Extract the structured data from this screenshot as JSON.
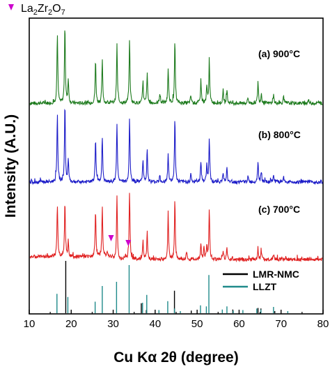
{
  "chart_data": {
    "type": "line",
    "xlabel": "Cu Kα 2θ (degree)",
    "ylabel": "Intensity (A.U.)",
    "xlim": [
      10,
      80
    ],
    "xticks": [
      "10",
      "20",
      "30",
      "40",
      "50",
      "60",
      "70",
      "80"
    ],
    "marker_legend": {
      "base": "La",
      "parts": [
        {
          "t": "La",
          "s": false
        },
        {
          "t": "2",
          "s": true
        },
        {
          "t": "Zr",
          "s": false
        },
        {
          "t": "2",
          "s": true
        },
        {
          "t": "O",
          "s": false
        },
        {
          "t": "7",
          "s": true
        }
      ],
      "color": "#cc00cc"
    },
    "panel_labels": [
      {
        "text": "(a) 900°C",
        "offset": 0
      },
      {
        "text": "(b) 800°C",
        "offset": 1
      },
      {
        "text": "(c) 700°C",
        "offset": 2
      }
    ],
    "series": [
      {
        "name": "(a) 900°C",
        "color": "#1e7b1e",
        "peaks": [
          [
            16.7,
            180
          ],
          [
            18.5,
            200
          ],
          [
            19.3,
            60
          ],
          [
            25.8,
            110
          ],
          [
            27.4,
            110
          ],
          [
            30.9,
            150
          ],
          [
            33.9,
            165
          ],
          [
            37.1,
            55
          ],
          [
            38.1,
            75
          ],
          [
            41.1,
            25
          ],
          [
            43.1,
            85
          ],
          [
            44.7,
            160
          ],
          [
            48.5,
            20
          ],
          [
            50.9,
            60
          ],
          [
            52.3,
            45
          ],
          [
            52.9,
            110
          ],
          [
            56.2,
            30
          ],
          [
            57.1,
            35
          ],
          [
            62.1,
            15
          ],
          [
            64.5,
            55
          ],
          [
            65.3,
            25
          ],
          [
            68.2,
            22
          ],
          [
            70.6,
            15
          ],
          [
            76.5,
            10
          ]
        ]
      },
      {
        "name": "(b) 800°C",
        "color": "#1c1cc8",
        "peaks": [
          [
            16.7,
            175
          ],
          [
            18.5,
            200
          ],
          [
            19.3,
            55
          ],
          [
            25.8,
            110
          ],
          [
            27.4,
            115
          ],
          [
            30.9,
            150
          ],
          [
            33.9,
            165
          ],
          [
            37.1,
            55
          ],
          [
            38.1,
            80
          ],
          [
            41.1,
            20
          ],
          [
            43.1,
            70
          ],
          [
            44.7,
            165
          ],
          [
            48.5,
            20
          ],
          [
            50.9,
            55
          ],
          [
            52.3,
            45
          ],
          [
            52.9,
            115
          ],
          [
            56.2,
            25
          ],
          [
            57.1,
            35
          ],
          [
            62.1,
            15
          ],
          [
            64.5,
            55
          ],
          [
            65.3,
            25
          ],
          [
            68.2,
            20
          ],
          [
            70.6,
            15
          ]
        ]
      },
      {
        "name": "(c) 700°C",
        "color": "#e02020",
        "peaks": [
          [
            16.7,
            135
          ],
          [
            18.5,
            145
          ],
          [
            19.3,
            40
          ],
          [
            25.8,
            120
          ],
          [
            27.4,
            125
          ],
          [
            28.6,
            15
          ],
          [
            30.9,
            160
          ],
          [
            32.9,
            10
          ],
          [
            33.9,
            175
          ],
          [
            37.1,
            50
          ],
          [
            38.1,
            70
          ],
          [
            43.1,
            115
          ],
          [
            44.7,
            155
          ],
          [
            47.5,
            20
          ],
          [
            50.9,
            40
          ],
          [
            51.6,
            30
          ],
          [
            52.3,
            35
          ],
          [
            52.9,
            130
          ],
          [
            56.2,
            20
          ],
          [
            57.1,
            30
          ],
          [
            64.5,
            30
          ],
          [
            65.3,
            20
          ],
          [
            68.2,
            15
          ]
        ]
      }
    ],
    "triangle_markers": [
      28.5,
      32.6
    ],
    "references": [
      {
        "name": "LMR-NMC",
        "color": "#000000",
        "lines": [
          [
            18.7,
            100
          ],
          [
            36.7,
            19
          ],
          [
            37.9,
            6
          ],
          [
            44.6,
            43
          ],
          [
            48.6,
            5
          ],
          [
            58.5,
            7
          ],
          [
            64.5,
            10
          ],
          [
            65.2,
            9
          ],
          [
            68.5,
            4
          ]
        ]
      },
      {
        "name": "LLZT",
        "color": "#1f8a8a",
        "lines": [
          [
            16.6,
            37
          ],
          [
            19.2,
            31
          ],
          [
            25.7,
            22
          ],
          [
            27.4,
            52
          ],
          [
            30.8,
            60
          ],
          [
            33.8,
            92
          ],
          [
            37.0,
            20
          ],
          [
            38.0,
            35
          ],
          [
            40.9,
            6
          ],
          [
            43.0,
            23
          ],
          [
            44.6,
            9
          ],
          [
            46.0,
            4
          ],
          [
            50.8,
            15
          ],
          [
            52.2,
            13
          ],
          [
            52.8,
            73
          ],
          [
            56.0,
            7
          ],
          [
            57.1,
            13
          ],
          [
            58.6,
            5
          ],
          [
            60.9,
            6
          ],
          [
            64.2,
            9
          ],
          [
            65.2,
            7
          ],
          [
            68.2,
            12
          ],
          [
            71.6,
            4
          ]
        ]
      }
    ]
  }
}
